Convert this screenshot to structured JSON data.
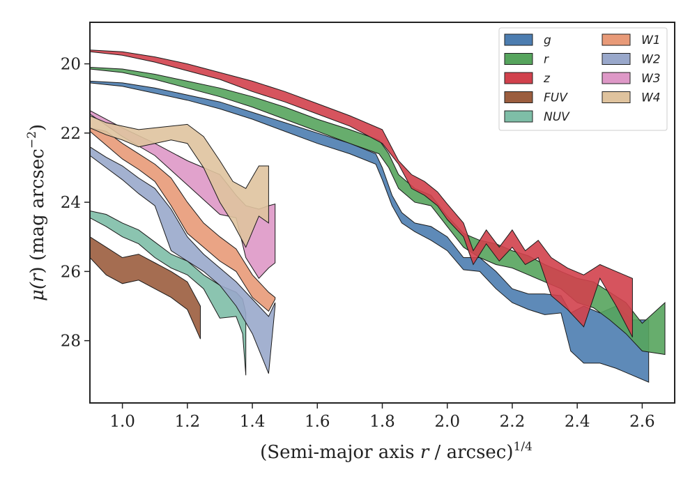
{
  "chart_data": {
    "type": "area",
    "title": "",
    "xlabel": {
      "pre": "(Semi-major axis ",
      "var": "r",
      "post": " / arcsec)",
      "sup": "1/4"
    },
    "ylabel": {
      "pre": "μ(",
      "var": "r",
      "post": ") (mag arcsec",
      "sup": "−2",
      "end": ")"
    },
    "xlim": [
      0.9,
      2.7
    ],
    "ylim": [
      29.8,
      18.8
    ],
    "y_inverted": true,
    "xticks": [
      1.0,
      1.2,
      1.4,
      1.6,
      1.8,
      2.0,
      2.2,
      2.4,
      2.6
    ],
    "xtick_labels": [
      "1.0",
      "1.2",
      "1.4",
      "1.6",
      "1.8",
      "2.0",
      "2.2",
      "2.4",
      "2.6"
    ],
    "yticks": [
      20,
      22,
      24,
      26,
      28
    ],
    "ytick_labels": [
      "20",
      "22",
      "24",
      "26",
      "28"
    ],
    "grid": false,
    "legend_position": "top-right",
    "legend_columns": 2,
    "series": [
      {
        "name": "g",
        "color": "#4c7db0",
        "x": [
          0.9,
          1.0,
          1.1,
          1.2,
          1.3,
          1.4,
          1.5,
          1.6,
          1.7,
          1.78,
          1.8,
          1.83,
          1.86,
          1.9,
          1.95,
          2.0,
          2.05,
          2.1,
          2.15,
          2.2,
          2.25,
          2.3,
          2.35,
          2.38,
          2.42,
          2.47,
          2.52,
          2.57,
          2.62
        ],
        "lower": [
          20.5,
          20.55,
          20.7,
          20.9,
          21.1,
          21.4,
          21.7,
          22.0,
          22.3,
          22.6,
          23.0,
          23.8,
          24.3,
          24.6,
          24.7,
          25.0,
          25.6,
          25.6,
          26.0,
          26.5,
          26.65,
          26.65,
          26.7,
          27.2,
          27.0,
          27.2,
          27.0,
          27.4,
          27.4
        ],
        "upper": [
          20.55,
          20.65,
          20.85,
          21.05,
          21.3,
          21.6,
          21.95,
          22.3,
          22.6,
          22.9,
          23.35,
          24.1,
          24.6,
          24.85,
          25.1,
          25.4,
          25.95,
          26.0,
          26.5,
          26.9,
          27.1,
          27.25,
          27.2,
          28.3,
          28.65,
          28.65,
          28.8,
          29.0,
          29.2
        ]
      },
      {
        "name": "r",
        "color": "#56a45d",
        "x": [
          0.9,
          1.0,
          1.1,
          1.2,
          1.3,
          1.4,
          1.5,
          1.6,
          1.7,
          1.79,
          1.82,
          1.85,
          1.9,
          1.95,
          2.0,
          2.05,
          2.1,
          2.15,
          2.2,
          2.25,
          2.3,
          2.35,
          2.4,
          2.45,
          2.5,
          2.55,
          2.6,
          2.67
        ],
        "lower": [
          20.1,
          20.15,
          20.3,
          20.5,
          20.7,
          20.95,
          21.25,
          21.6,
          21.9,
          22.2,
          22.6,
          23.2,
          23.6,
          23.8,
          24.4,
          24.9,
          25.1,
          25.2,
          25.4,
          25.55,
          25.8,
          26.0,
          26.2,
          26.3,
          26.6,
          26.9,
          27.5,
          26.9
        ],
        "upper": [
          20.15,
          20.25,
          20.45,
          20.7,
          20.95,
          21.25,
          21.6,
          21.95,
          22.3,
          22.6,
          23.0,
          23.6,
          24.0,
          24.1,
          24.7,
          25.3,
          25.6,
          25.8,
          25.9,
          26.1,
          26.3,
          26.5,
          26.9,
          27.05,
          27.4,
          27.8,
          28.3,
          28.4
        ]
      },
      {
        "name": "z",
        "color": "#d1414c",
        "x": [
          0.9,
          1.0,
          1.1,
          1.2,
          1.3,
          1.4,
          1.5,
          1.6,
          1.7,
          1.8,
          1.85,
          1.89,
          1.93,
          1.97,
          2.0,
          2.05,
          2.08,
          2.12,
          2.16,
          2.2,
          2.24,
          2.28,
          2.32,
          2.37,
          2.42,
          2.47,
          2.52,
          2.57
        ],
        "lower": [
          19.6,
          19.65,
          19.8,
          20.0,
          20.25,
          20.5,
          20.8,
          21.15,
          21.5,
          21.9,
          22.8,
          23.2,
          23.4,
          23.7,
          24.05,
          24.6,
          25.4,
          24.8,
          25.3,
          24.8,
          25.4,
          25.1,
          25.6,
          25.9,
          26.1,
          25.8,
          26.0,
          26.2
        ],
        "upper": [
          19.65,
          19.75,
          19.95,
          20.2,
          20.45,
          20.8,
          21.1,
          21.45,
          21.8,
          22.3,
          22.9,
          23.6,
          23.8,
          24.1,
          24.5,
          25.0,
          25.8,
          25.2,
          25.7,
          25.3,
          25.8,
          25.6,
          26.7,
          27.1,
          27.6,
          26.2,
          27.0,
          27.9
        ]
      },
      {
        "name": "FUV",
        "color": "#9b5d3e",
        "x": [
          0.9,
          0.95,
          1.0,
          1.05,
          1.1,
          1.15,
          1.2,
          1.24
        ],
        "lower": [
          25.0,
          25.3,
          25.6,
          25.5,
          25.75,
          26.0,
          26.3,
          27.0
        ],
        "upper": [
          25.6,
          26.1,
          26.35,
          26.25,
          26.5,
          26.75,
          27.1,
          27.95
        ]
      },
      {
        "name": "NUV",
        "color": "#7ebea7",
        "x": [
          0.9,
          0.95,
          1.0,
          1.05,
          1.1,
          1.15,
          1.2,
          1.25,
          1.3,
          1.35,
          1.37,
          1.38
        ],
        "lower": [
          24.25,
          24.35,
          24.6,
          24.8,
          25.15,
          25.5,
          25.7,
          26.1,
          26.4,
          26.6,
          26.8,
          27.2
        ],
        "upper": [
          24.45,
          24.7,
          25.0,
          25.2,
          25.6,
          25.9,
          26.1,
          26.5,
          27.35,
          27.3,
          27.8,
          29.0
        ]
      },
      {
        "name": "W1",
        "color": "#e89a78",
        "x": [
          0.9,
          0.95,
          1.0,
          1.05,
          1.1,
          1.15,
          1.2,
          1.25,
          1.3,
          1.35,
          1.4,
          1.45,
          1.47
        ],
        "lower": [
          21.85,
          21.95,
          22.3,
          22.6,
          22.9,
          23.3,
          24.0,
          24.6,
          25.0,
          25.35,
          26.1,
          26.6,
          26.75
        ],
        "upper": [
          21.95,
          22.35,
          22.75,
          23.05,
          23.4,
          24.1,
          24.9,
          25.3,
          25.7,
          26.0,
          26.75,
          27.15,
          26.8
        ]
      },
      {
        "name": "W2",
        "color": "#99a8cb",
        "x": [
          0.9,
          0.95,
          1.0,
          1.05,
          1.1,
          1.15,
          1.2,
          1.25,
          1.3,
          1.35,
          1.4,
          1.45,
          1.47
        ],
        "lower": [
          22.4,
          22.7,
          22.95,
          23.3,
          23.6,
          24.2,
          25.0,
          25.5,
          25.9,
          26.3,
          26.8,
          27.3,
          26.9
        ],
        "upper": [
          22.65,
          23.0,
          23.35,
          23.75,
          24.1,
          25.4,
          25.7,
          26.0,
          26.4,
          27.0,
          27.8,
          28.95,
          27.0
        ]
      },
      {
        "name": "W3",
        "color": "#de98c7",
        "x": [
          0.9,
          1.0,
          1.1,
          1.2,
          1.3,
          1.35,
          1.38,
          1.42,
          1.45,
          1.47
        ],
        "lower": [
          21.35,
          21.85,
          22.3,
          22.8,
          23.2,
          23.8,
          24.1,
          24.2,
          24.1,
          24.05
        ],
        "upper": [
          21.45,
          22.1,
          22.65,
          23.5,
          24.35,
          24.45,
          25.6,
          26.2,
          25.9,
          25.75
        ]
      },
      {
        "name": "W4",
        "color": "#dfc39e",
        "x": [
          0.9,
          0.95,
          1.0,
          1.05,
          1.1,
          1.15,
          1.2,
          1.25,
          1.3,
          1.34,
          1.38,
          1.42,
          1.45
        ],
        "lower": [
          21.5,
          21.7,
          21.8,
          21.9,
          21.85,
          21.8,
          21.75,
          22.1,
          22.8,
          23.4,
          23.6,
          22.95,
          22.95
        ],
        "upper": [
          21.85,
          22.05,
          22.2,
          22.4,
          22.3,
          22.2,
          22.3,
          23.0,
          24.0,
          24.6,
          25.3,
          24.4,
          24.6
        ]
      }
    ]
  }
}
